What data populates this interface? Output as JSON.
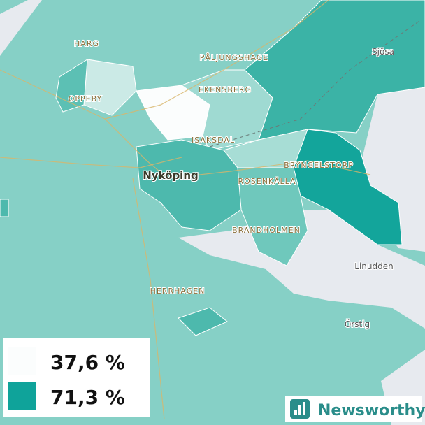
{
  "places": [
    {
      "label": "HARG"
    },
    {
      "label": "PÅLJUNGSHAGE"
    },
    {
      "label": "EKENSBERG"
    },
    {
      "label": "OPPEBY"
    },
    {
      "label": "ISAKSDAL"
    },
    {
      "label": "Nyköping"
    },
    {
      "label": "BRYNGELSTORP"
    },
    {
      "label": "ROSENKÄLLA"
    },
    {
      "label": "BRANDHOLMEN"
    },
    {
      "label": "Sjösa"
    },
    {
      "label": "Linudden"
    },
    {
      "label": "HERRHAGEN"
    },
    {
      "label": "Örstig"
    }
  ],
  "legend": [
    {
      "label": "37,6 %",
      "color": "#fbfdfd"
    },
    {
      "label": "71,3 %",
      "color": "#0fa39a"
    }
  ],
  "logo": {
    "text": "Newsworthy"
  }
}
